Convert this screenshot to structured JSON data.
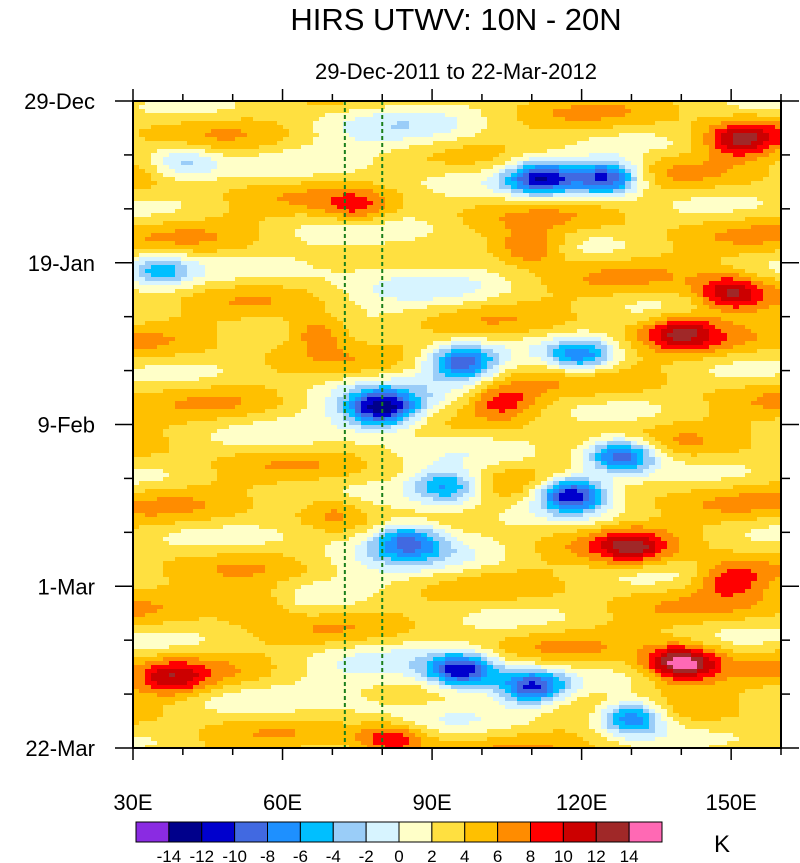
{
  "chart_data": {
    "type": "heatmap",
    "title": "HIRS UTWV: 10N - 20N",
    "subtitle": "29-Dec-2011 to 22-Mar-2012",
    "xlabel": "",
    "ylabel": "",
    "xlim": [
      30,
      160
    ],
    "ylim_days": [
      0,
      84
    ],
    "x_ticks": [
      {
        "value": 30,
        "label": "30E"
      },
      {
        "value": 60,
        "label": "60E"
      },
      {
        "value": 90,
        "label": "90E"
      },
      {
        "value": 120,
        "label": "120E"
      },
      {
        "value": 150,
        "label": "150E"
      }
    ],
    "y_ticks": [
      {
        "day": 0,
        "label": "29-Dec"
      },
      {
        "day": 21,
        "label": "19-Jan"
      },
      {
        "day": 42,
        "label": "9-Feb"
      },
      {
        "day": 63,
        "label": "1-Mar"
      },
      {
        "day": 84,
        "label": "22-Mar"
      }
    ],
    "reference_lines_lon": [
      72.5,
      80
    ],
    "colorbar": {
      "unit": "K",
      "labels": [
        "-14",
        "-12",
        "-10",
        "-8",
        "-6",
        "-4",
        "-2",
        "0",
        "2",
        "4",
        "6",
        "8",
        "10",
        "12",
        "14"
      ],
      "colors": [
        "#8a2be2",
        "#00008b",
        "#0000cd",
        "#4169e1",
        "#1e90ff",
        "#00bfff",
        "#9acdf8",
        "#d7f4ff",
        "#ffffc8",
        "#ffe040",
        "#ffc000",
        "#ff8c00",
        "#ff0000",
        "#cc0000",
        "#a02828",
        "#ff69b4"
      ]
    },
    "anomaly_features": [
      {
        "lon": 75,
        "day": 14,
        "value": 8
      },
      {
        "lon": 67,
        "day": 30,
        "value": 9
      },
      {
        "lon": 112,
        "day": 10,
        "value": -11
      },
      {
        "lon": 125,
        "day": 10,
        "value": -12
      },
      {
        "lon": 110,
        "day": 19,
        "value": 9
      },
      {
        "lon": 150,
        "day": 25,
        "value": 12
      },
      {
        "lon": 140,
        "day": 30,
        "value": 10
      },
      {
        "lon": 96,
        "day": 34,
        "value": -9
      },
      {
        "lon": 120,
        "day": 33,
        "value": -7
      },
      {
        "lon": 80,
        "day": 40,
        "value": -11
      },
      {
        "lon": 104,
        "day": 39,
        "value": 9
      },
      {
        "lon": 128,
        "day": 46,
        "value": -11
      },
      {
        "lon": 118,
        "day": 51,
        "value": -13
      },
      {
        "lon": 93,
        "day": 50,
        "value": -7
      },
      {
        "lon": 70,
        "day": 53,
        "value": 7
      },
      {
        "lon": 85,
        "day": 57,
        "value": -7
      },
      {
        "lon": 130,
        "day": 58,
        "value": 10
      },
      {
        "lon": 150,
        "day": 62,
        "value": 9
      },
      {
        "lon": 55,
        "day": 65,
        "value": 7
      },
      {
        "lon": 140,
        "day": 73,
        "value": 15
      },
      {
        "lon": 96,
        "day": 74,
        "value": -11
      },
      {
        "lon": 110,
        "day": 76,
        "value": -10
      },
      {
        "lon": 82,
        "day": 83,
        "value": 10
      },
      {
        "lon": 130,
        "day": 80,
        "value": -10
      },
      {
        "lon": 38,
        "day": 75,
        "value": 9
      },
      {
        "lon": 152,
        "day": 5,
        "value": 11
      },
      {
        "lon": 40,
        "day": 8,
        "value": -3
      },
      {
        "lon": 35,
        "day": 22,
        "value": -5
      }
    ]
  }
}
